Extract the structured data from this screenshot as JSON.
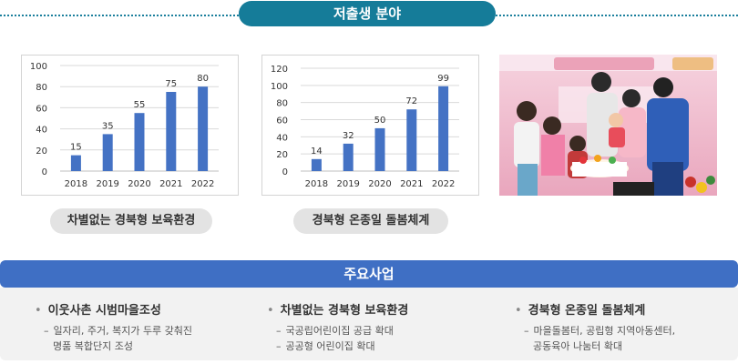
{
  "header": {
    "title": "저출생 분야"
  },
  "charts_section": {
    "captions": [
      "차별없는 경북형 보육환경",
      "경북형 온종일 돌봄체계"
    ]
  },
  "chart_data": [
    {
      "type": "bar",
      "categories": [
        "2018",
        "2019",
        "2020",
        "2021",
        "2022"
      ],
      "values": [
        15,
        35,
        55,
        75,
        80
      ],
      "ylim": [
        0,
        100
      ],
      "yticks": [
        "0",
        "20",
        "40",
        "60",
        "80",
        "100"
      ],
      "value_labels": [
        "15",
        "35",
        "55",
        "75",
        "80"
      ],
      "grid": true,
      "color": "#4472c4",
      "title": "",
      "xlabel": "",
      "ylabel": ""
    },
    {
      "type": "bar",
      "categories": [
        "2018",
        "2019",
        "2020",
        "2021",
        "2022"
      ],
      "values": [
        14,
        32,
        50,
        72,
        99
      ],
      "ylim": [
        0,
        120
      ],
      "yticks": [
        "0",
        "20",
        "40",
        "60",
        "80",
        "100",
        "120"
      ],
      "value_labels": [
        "14",
        "32",
        "50",
        "72",
        "99"
      ],
      "grid": true,
      "color": "#4472c4",
      "title": "",
      "xlabel": "",
      "ylabel": ""
    }
  ],
  "photo": {
    "icon": "family-event-photo"
  },
  "main_business": {
    "title": "주요사업",
    "items": [
      {
        "bullet": "•",
        "title": "이웃사촌 시범마을조성",
        "dash": "–",
        "lines": [
          "일자리, 주거, 복지가 두루 갖춰진",
          "명품 복합단지 조성"
        ]
      },
      {
        "bullet": "•",
        "title": "차별없는 경북형 보육환경",
        "dash": "–",
        "lines": [
          "국공립어린이집 공급 확대",
          "공공형 어린이집 확대"
        ]
      },
      {
        "bullet": "•",
        "title": "경북형 온종일 돌봄체계",
        "dash": "–",
        "lines": [
          "마을돌봄터, 공립형 지역아동센터,",
          "공동육아 나눔터 확대"
        ]
      }
    ]
  },
  "colors": {
    "header": "#157c99",
    "bar": "#4472c4",
    "banner": "#3f6fc4",
    "panel": "#f2f2f2"
  }
}
